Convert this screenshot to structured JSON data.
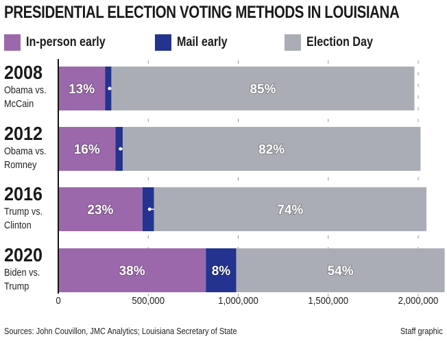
{
  "chart_data": {
    "type": "bar",
    "orientation": "horizontal",
    "stacked": true,
    "title": "PRESIDENTIAL ELECTION VOTING METHODS IN LOUISIANA",
    "categories": [
      {
        "year": "2008",
        "matchup": "Obama vs. McCain"
      },
      {
        "year": "2012",
        "matchup": "Obama vs. Romney"
      },
      {
        "year": "2016",
        "matchup": "Trump vs. Clinton"
      },
      {
        "year": "2020",
        "matchup": "Biden vs. Trump"
      }
    ],
    "series": [
      {
        "name": "In-person early",
        "color": "#9b69ab",
        "values": [
          260000,
          318000,
          468000,
          820000
        ],
        "labels": [
          "13%",
          "16%",
          "23%",
          "38%"
        ]
      },
      {
        "name": "Mail early",
        "color": "#23338f",
        "values": [
          35000,
          40000,
          64000,
          169000
        ],
        "labels": [
          "2%",
          "2%",
          "3%",
          "8%"
        ]
      },
      {
        "name": "Election Day",
        "color": "#abadb6",
        "values": [
          1684000,
          1655000,
          1514000,
          1158000
        ],
        "labels": [
          "85%",
          "82%",
          "74%",
          "54%"
        ]
      }
    ],
    "xlim": [
      0,
      2150000
    ],
    "xticks": [
      0,
      500000,
      1000000,
      1500000,
      2000000
    ],
    "xtick_labels": [
      "0",
      "500,000",
      "1,000,000",
      "1,500,000",
      "2,000,000"
    ],
    "grid": "vertical dashed",
    "legend": "top"
  },
  "footer": {
    "source": "Sources: John Couvillon, JMC Analytics; Louisiana Secretary of State",
    "credit": "Staff graphic"
  }
}
